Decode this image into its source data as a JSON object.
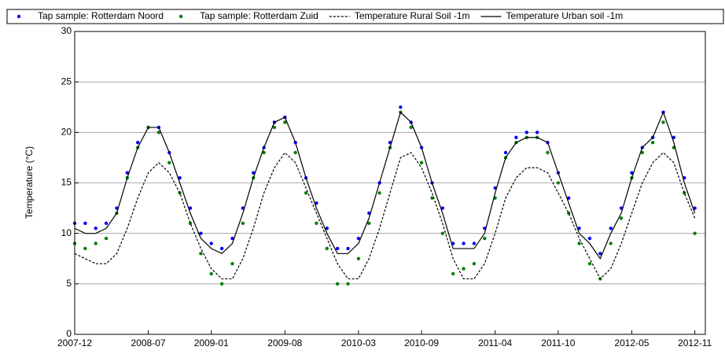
{
  "chart_data": {
    "type": "scatter",
    "y_label": "Temperature (°C)",
    "x": [
      "2007-12",
      "2008-01",
      "2008-02",
      "2008-03",
      "2008-04",
      "2008-05",
      "2008-06",
      "2008-07",
      "2008-08",
      "2008-09",
      "2008-10",
      "2008-11",
      "2008-12",
      "2009-01",
      "2009-02",
      "2009-03",
      "2009-04",
      "2009-05",
      "2009-06",
      "2009-07",
      "2009-08",
      "2009-09",
      "2009-10",
      "2009-11",
      "2009-12",
      "2010-01",
      "2010-02",
      "2010-03",
      "2010-04",
      "2010-05",
      "2010-06",
      "2010-07",
      "2010-08",
      "2010-09",
      "2010-10",
      "2010-11",
      "2010-12",
      "2011-01",
      "2011-02",
      "2011-03",
      "2011-04",
      "2011-05",
      "2011-06",
      "2011-07",
      "2011-08",
      "2011-09",
      "2011-10",
      "2011-11",
      "2011-12",
      "2012-01",
      "2012-02",
      "2012-03",
      "2012-04",
      "2012-05",
      "2012-06",
      "2012-07",
      "2012-08",
      "2012-09",
      "2012-10",
      "2012-11"
    ],
    "series": [
      {
        "name": "Tap sample: Rotterdam Noord",
        "color": "#0000ff",
        "mark": "dots",
        "values": [
          11,
          11,
          10.5,
          11,
          12.5,
          16,
          19,
          20.5,
          20.5,
          18,
          15.5,
          12.5,
          10,
          9,
          8.5,
          9.5,
          12.5,
          16,
          18.5,
          21,
          21.5,
          19,
          15.5,
          13,
          10.5,
          8.5,
          8.5,
          9.5,
          12,
          15,
          19,
          22.5,
          21,
          18.5,
          15,
          12.5,
          9,
          9,
          9,
          10.5,
          14.5,
          18,
          19.5,
          20,
          20,
          19,
          16,
          13.5,
          10.5,
          9.5,
          8,
          10.5,
          12.5,
          16,
          18.5,
          19.5,
          22,
          19.5,
          15.5,
          12.5
        ]
      },
      {
        "name": "Tap sample: Rotterdam Zuid",
        "color": "#008000",
        "mark": "dots",
        "values": [
          9,
          8.5,
          9,
          9.5,
          12,
          15.5,
          18.5,
          20.5,
          20,
          17,
          14,
          11,
          8,
          6,
          5,
          7,
          11,
          15.5,
          18,
          20.5,
          21,
          18,
          14,
          11,
          8.5,
          5,
          5,
          7.5,
          11,
          14,
          18.5,
          22,
          20.5,
          17,
          13.5,
          10,
          6,
          6.5,
          7,
          9.5,
          13.5,
          17.5,
          19,
          19.5,
          19.5,
          18,
          15,
          12,
          9,
          7,
          5.5,
          9,
          11.5,
          15.5,
          18,
          19,
          21,
          18.5,
          14,
          10
        ]
      },
      {
        "name": "Temperature Rural Soil -1m",
        "color": "#000000",
        "mark": "dashed",
        "values": [
          8,
          7.5,
          7,
          7,
          8,
          10.5,
          13.5,
          16,
          17,
          16,
          14,
          11,
          8.5,
          6.5,
          5.5,
          5.5,
          7.5,
          10.5,
          14,
          16.5,
          18,
          17,
          14.5,
          12,
          9.5,
          7,
          5.5,
          5.5,
          7.5,
          10.5,
          14,
          17.5,
          18,
          16.5,
          14,
          11,
          7.5,
          5.5,
          5.5,
          7,
          10,
          13.5,
          15.5,
          16.5,
          16.5,
          16,
          14,
          12,
          9.5,
          7.5,
          5.5,
          6.5,
          9,
          12,
          15,
          17,
          18,
          17,
          14,
          11.5
        ]
      },
      {
        "name": "Temperature Urban soil -1m",
        "color": "#000000",
        "mark": "solid",
        "values": [
          10.5,
          10,
          10,
          10.5,
          12,
          15.5,
          18.5,
          20.5,
          20.5,
          18,
          15,
          12,
          9.5,
          8.5,
          8,
          9,
          12,
          15.5,
          18.5,
          21,
          21.5,
          19,
          15.5,
          12.5,
          10,
          8,
          8,
          9,
          11.5,
          15,
          18.5,
          22,
          21,
          18.5,
          15,
          12,
          8.5,
          8.5,
          8.5,
          10,
          14,
          17.5,
          19,
          19.5,
          19.5,
          19,
          16,
          13,
          10,
          9,
          7.5,
          10,
          12,
          15.5,
          18.5,
          19.5,
          22,
          19,
          15,
          12
        ]
      }
    ],
    "xlim": [
      "2007-12",
      "2012-12"
    ],
    "xticks": [
      "2007-12",
      "2008-07",
      "2009-01",
      "2009-08",
      "2010-03",
      "2010-09",
      "2011-04",
      "2011-10",
      "2012-05",
      "2012-11"
    ],
    "ylim": [
      0,
      30
    ],
    "yticks": [
      0,
      5,
      10,
      15,
      20,
      25,
      30
    ],
    "grid": true
  }
}
